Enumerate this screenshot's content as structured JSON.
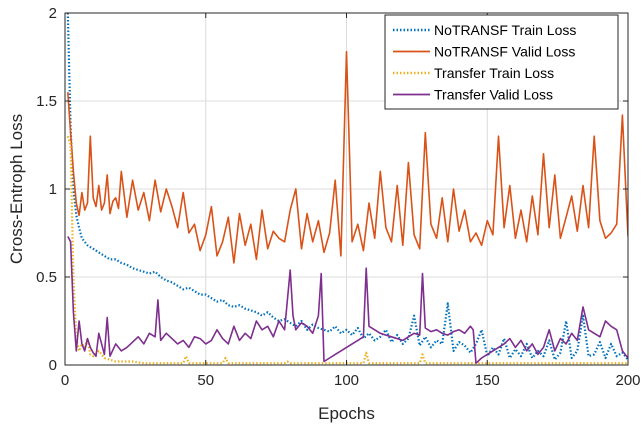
{
  "chart_data": {
    "type": "line",
    "xlabel": "Epochs",
    "ylabel": "Cross-Entroph Loss",
    "xlim": [
      0,
      200
    ],
    "ylim": [
      0,
      2
    ],
    "xticks": [
      "0",
      "50",
      "100",
      "150",
      "200"
    ],
    "yticks": [
      "0",
      "0.5",
      "1",
      "1.5",
      "2"
    ],
    "grid": true,
    "legend_position": "top-right",
    "series": [
      {
        "name": "NoTRANSF Train Loss",
        "color": "#0072BD",
        "style": "dotted",
        "x": [
          1,
          2,
          3,
          4,
          5,
          6,
          7,
          8,
          9,
          10,
          11,
          12,
          14,
          16,
          18,
          20,
          22,
          24,
          26,
          28,
          30,
          32,
          34,
          36,
          38,
          40,
          42,
          44,
          46,
          48,
          50,
          52,
          54,
          56,
          58,
          60,
          62,
          64,
          66,
          68,
          70,
          72,
          74,
          76,
          78,
          80,
          82,
          84,
          86,
          88,
          90,
          92,
          94,
          96,
          98,
          100,
          102,
          104,
          106,
          108,
          110,
          112,
          114,
          116,
          118,
          120,
          122,
          124,
          126,
          128,
          130,
          132,
          134,
          136,
          138,
          140,
          142,
          144,
          146,
          148,
          150,
          152,
          154,
          156,
          158,
          160,
          162,
          164,
          166,
          168,
          170,
          172,
          174,
          176,
          178,
          180,
          182,
          184,
          186,
          188,
          190,
          192,
          194,
          196,
          198,
          200
        ],
        "values": [
          2.0,
          1.35,
          1.0,
          0.85,
          0.78,
          0.72,
          0.7,
          0.68,
          0.67,
          0.66,
          0.65,
          0.64,
          0.62,
          0.6,
          0.6,
          0.58,
          0.57,
          0.55,
          0.54,
          0.53,
          0.52,
          0.53,
          0.5,
          0.48,
          0.47,
          0.45,
          0.43,
          0.44,
          0.42,
          0.4,
          0.4,
          0.38,
          0.36,
          0.37,
          0.34,
          0.33,
          0.34,
          0.32,
          0.31,
          0.3,
          0.28,
          0.3,
          0.27,
          0.25,
          0.26,
          0.24,
          0.22,
          0.25,
          0.2,
          0.23,
          0.21,
          0.2,
          0.19,
          0.22,
          0.18,
          0.2,
          0.17,
          0.21,
          0.15,
          0.18,
          0.14,
          0.16,
          0.2,
          0.13,
          0.17,
          0.12,
          0.15,
          0.28,
          0.11,
          0.16,
          0.1,
          0.14,
          0.12,
          0.35,
          0.08,
          0.13,
          0.11,
          0.07,
          0.12,
          0.2,
          0.05,
          0.1,
          0.06,
          0.15,
          0.04,
          0.09,
          0.05,
          0.12,
          0.04,
          0.08,
          0.05,
          0.14,
          0.03,
          0.07,
          0.25,
          0.04,
          0.08,
          0.28,
          0.05,
          0.06,
          0.13,
          0.04,
          0.12,
          0.05,
          0.07,
          0.03
        ]
      },
      {
        "name": "NoTRANSF Valid Loss",
        "color": "#D95319",
        "style": "solid",
        "x": [
          1,
          2,
          3,
          4,
          5,
          6,
          7,
          8,
          9,
          10,
          11,
          12,
          13,
          14,
          15,
          16,
          17,
          18,
          19,
          20,
          22,
          24,
          26,
          28,
          30,
          32,
          34,
          36,
          38,
          40,
          42,
          44,
          46,
          48,
          50,
          52,
          54,
          56,
          58,
          60,
          62,
          64,
          66,
          68,
          70,
          72,
          74,
          76,
          78,
          80,
          82,
          84,
          86,
          88,
          90,
          92,
          94,
          96,
          98,
          100,
          102,
          104,
          106,
          108,
          110,
          112,
          114,
          116,
          118,
          120,
          122,
          124,
          126,
          128,
          130,
          132,
          134,
          136,
          138,
          140,
          142,
          144,
          146,
          148,
          150,
          152,
          154,
          156,
          158,
          160,
          162,
          164,
          166,
          168,
          170,
          172,
          174,
          176,
          178,
          180,
          182,
          184,
          186,
          188,
          190,
          192,
          194,
          196,
          198,
          200
        ],
        "values": [
          1.55,
          1.32,
          1.1,
          0.92,
          0.85,
          0.98,
          0.88,
          0.92,
          1.3,
          0.95,
          0.9,
          1.02,
          0.88,
          0.92,
          1.08,
          0.86,
          0.93,
          0.95,
          0.89,
          1.1,
          0.84,
          1.05,
          0.88,
          0.98,
          0.82,
          1.05,
          0.87,
          1.0,
          0.9,
          0.78,
          0.98,
          0.75,
          0.8,
          0.65,
          0.74,
          0.9,
          0.62,
          0.7,
          0.84,
          0.58,
          0.86,
          0.68,
          0.8,
          0.6,
          0.88,
          0.66,
          0.76,
          0.72,
          0.7,
          0.88,
          1.0,
          0.66,
          0.86,
          0.7,
          0.82,
          0.64,
          0.75,
          1.05,
          0.62,
          1.78,
          0.7,
          0.8,
          0.65,
          0.92,
          0.72,
          1.1,
          0.78,
          0.7,
          1.02,
          0.68,
          1.15,
          0.74,
          0.66,
          1.32,
          0.8,
          0.72,
          0.95,
          0.7,
          1.0,
          0.76,
          0.88,
          0.7,
          0.75,
          0.68,
          0.82,
          0.74,
          1.3,
          0.78,
          1.02,
          0.72,
          0.88,
          0.7,
          0.96,
          0.74,
          1.2,
          0.78,
          1.08,
          0.72,
          0.84,
          0.96,
          0.76,
          1.02,
          0.78,
          1.3,
          0.82,
          0.72,
          0.75,
          0.8,
          1.42,
          0.73
        ]
      },
      {
        "name": "Transfer Train Loss",
        "color": "#EDB120",
        "style": "dotted",
        "x": [
          1,
          2,
          3,
          4,
          5,
          6,
          7,
          8,
          9,
          10,
          12,
          14,
          16,
          18,
          20,
          24,
          28,
          32,
          36,
          40,
          42,
          43,
          44,
          46,
          50,
          54,
          56,
          57,
          58,
          60,
          64,
          68,
          72,
          76,
          78,
          79,
          80,
          84,
          88,
          92,
          96,
          100,
          104,
          106,
          107,
          108,
          112,
          116,
          120,
          124,
          126,
          127,
          128,
          132,
          136,
          140,
          144,
          148,
          152,
          156,
          160,
          164,
          168,
          172,
          176,
          180,
          184,
          188,
          192,
          196,
          200
        ],
        "values": [
          1.3,
          1.25,
          0.5,
          0.15,
          0.08,
          0.12,
          0.1,
          0.15,
          0.06,
          0.05,
          0.08,
          0.04,
          0.03,
          0.02,
          0.02,
          0.02,
          0.01,
          0.01,
          0.01,
          0.01,
          0.01,
          0.05,
          0.01,
          0.01,
          0.01,
          0.01,
          0.01,
          0.04,
          0.01,
          0.01,
          0.01,
          0.01,
          0.01,
          0.01,
          0.01,
          0.02,
          0.01,
          0.01,
          0.01,
          0.01,
          0.01,
          0.01,
          0.01,
          0.01,
          0.07,
          0.01,
          0.01,
          0.01,
          0.01,
          0.01,
          0.01,
          0.06,
          0.01,
          0.01,
          0.01,
          0.01,
          0.01,
          0.01,
          0.01,
          0.01,
          0.01,
          0.01,
          0.01,
          0.01,
          0.01,
          0.01,
          0.01,
          0.01,
          0.01,
          0.01,
          0.01
        ]
      },
      {
        "name": "Transfer Valid Loss",
        "color": "#7E2F8E",
        "style": "solid",
        "x": [
          1,
          2,
          3,
          4,
          5,
          6,
          7,
          8,
          9,
          10,
          11,
          12,
          14,
          15,
          16,
          18,
          20,
          22,
          24,
          26,
          28,
          30,
          32,
          33,
          34,
          36,
          38,
          40,
          42,
          44,
          46,
          48,
          50,
          52,
          54,
          56,
          58,
          60,
          62,
          64,
          66,
          68,
          70,
          72,
          74,
          76,
          78,
          80,
          81,
          82,
          84,
          86,
          88,
          90,
          91,
          92,
          94,
          96,
          98,
          100,
          102,
          104,
          106,
          107,
          108,
          110,
          112,
          114,
          116,
          118,
          120,
          122,
          124,
          126,
          127,
          128,
          130,
          132,
          134,
          136,
          138,
          140,
          142,
          144,
          145,
          146,
          148,
          150,
          152,
          154,
          156,
          158,
          160,
          162,
          164,
          166,
          168,
          170,
          172,
          174,
          176,
          178,
          180,
          182,
          184,
          186,
          188,
          190,
          192,
          194,
          196,
          198,
          200
        ],
        "values": [
          0.73,
          0.7,
          0.3,
          0.08,
          0.25,
          0.12,
          0.08,
          0.15,
          0.1,
          0.07,
          0.05,
          0.18,
          0.06,
          0.27,
          0.05,
          0.12,
          0.08,
          0.1,
          0.13,
          0.16,
          0.12,
          0.18,
          0.16,
          0.37,
          0.14,
          0.18,
          0.15,
          0.12,
          0.14,
          0.1,
          0.16,
          0.15,
          0.12,
          0.14,
          0.2,
          0.15,
          0.12,
          0.22,
          0.14,
          0.18,
          0.15,
          0.25,
          0.2,
          0.22,
          0.16,
          0.25,
          0.2,
          0.54,
          0.28,
          0.2,
          0.24,
          0.22,
          0.18,
          0.28,
          0.52,
          0.02,
          0.04,
          0.06,
          0.08,
          0.1,
          0.12,
          0.14,
          0.16,
          0.55,
          0.22,
          0.2,
          0.18,
          0.17,
          0.16,
          0.15,
          0.14,
          0.16,
          0.18,
          0.17,
          0.52,
          0.21,
          0.19,
          0.2,
          0.18,
          0.17,
          0.19,
          0.2,
          0.18,
          0.22,
          0.2,
          0.01,
          0.04,
          0.06,
          0.08,
          0.1,
          0.12,
          0.15,
          0.1,
          0.14,
          0.08,
          0.12,
          0.06,
          0.1,
          0.2,
          0.08,
          0.15,
          0.12,
          0.18,
          0.14,
          0.33,
          0.2,
          0.18,
          0.16,
          0.25,
          0.22,
          0.2,
          0.08,
          0.04
        ]
      }
    ]
  }
}
